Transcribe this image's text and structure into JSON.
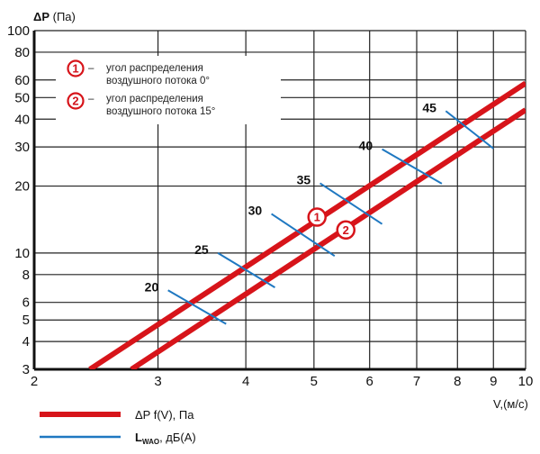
{
  "chart_data": {
    "type": "line",
    "ylabel": "ΔP (Па)",
    "xlabel": "V,(м/с)",
    "x_scale": "log",
    "y_scale": "log",
    "xlim": [
      2,
      10
    ],
    "ylim": [
      3,
      100
    ],
    "x_ticks": [
      2,
      3,
      4,
      5,
      6,
      7,
      8,
      9,
      10
    ],
    "y_ticks": [
      3,
      4,
      5,
      6,
      8,
      10,
      20,
      30,
      40,
      50,
      60,
      80,
      100
    ],
    "grid": true,
    "series": [
      {
        "name": "ΔP f(V), Па",
        "marker": "1",
        "color": "#d7141a",
        "x": [
          2.4,
          10
        ],
        "y": [
          3,
          58
        ]
      },
      {
        "name": "ΔP f(V), Па",
        "marker": "2",
        "color": "#d7141a",
        "x": [
          2.75,
          10
        ],
        "y": [
          3,
          44
        ]
      }
    ],
    "markers": [
      {
        "label": "1",
        "x": 5.05,
        "y": 14.5
      },
      {
        "label": "2",
        "x": 5.55,
        "y": 12.7
      }
    ],
    "noise_levels": [
      {
        "label": "20",
        "x1": 3.1,
        "y1": 6.8,
        "x2": 3.75,
        "y2": 4.8
      },
      {
        "label": "25",
        "x1": 3.65,
        "y1": 10.0,
        "x2": 4.4,
        "y2": 7.0
      },
      {
        "label": "30",
        "x1": 4.35,
        "y1": 15.0,
        "x2": 5.35,
        "y2": 9.7
      },
      {
        "label": "35",
        "x1": 5.1,
        "y1": 20.6,
        "x2": 6.25,
        "y2": 13.5
      },
      {
        "label": "40",
        "x1": 6.25,
        "y1": 29.3,
        "x2": 7.6,
        "y2": 20.5
      },
      {
        "label": "45",
        "x1": 7.7,
        "y1": 43.5,
        "x2": 9.0,
        "y2": 29.5
      }
    ],
    "annotations": [
      {
        "marker": "1",
        "text_line1": "угол распределения",
        "text_line2": "воздушного потока 0°"
      },
      {
        "marker": "2",
        "text_line1": "угол распределения",
        "text_line2": "воздушного потока 15°"
      }
    ],
    "legend": {
      "placement": "bottom-left",
      "items": [
        {
          "text": "ΔP f(V), Па",
          "color": "#d7141a"
        },
        {
          "text_main": "L",
          "text_sub": "WAO",
          "text_rest": ", дБ(А)",
          "color": "#1f78c1"
        }
      ]
    }
  }
}
